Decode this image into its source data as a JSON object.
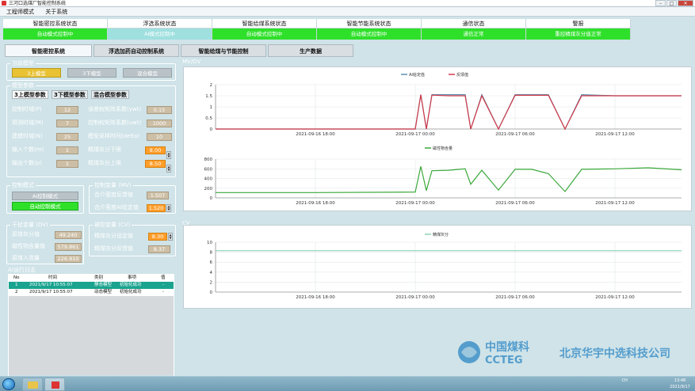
{
  "window": {
    "title": "三河口选煤厂智能控制系统",
    "buttons": {
      "min": "–",
      "max": "□",
      "close": "✕"
    }
  },
  "menu": [
    "工程师模式",
    "关于系统"
  ],
  "status": [
    {
      "head": "智能密控系统状态",
      "val": "自动模式控制中",
      "color": "green"
    },
    {
      "head": "浮选系统状态",
      "val": "AI模式控制中",
      "color": "cyan"
    },
    {
      "head": "智能给煤系统状态",
      "val": "自动模式控制中",
      "color": "green"
    },
    {
      "head": "智能节能系统状态",
      "val": "自动模式控制中",
      "color": "green"
    },
    {
      "head": "通信状态",
      "val": "通信正常",
      "color": "green"
    },
    {
      "head": "警报",
      "val": "重控精煤灰分值正常",
      "color": "green"
    }
  ],
  "tabs": [
    "智能密控系统",
    "浮选加药自动控制系统",
    "智能给煤与节能控制",
    "生产数据"
  ],
  "left": {
    "current_model": {
      "label": "当前模型",
      "buttons": [
        "3上模型",
        "3下模型",
        "混合模型"
      ]
    },
    "model_params": {
      "label": "模型参数",
      "subtabs": [
        "3上模型参数",
        "3下模型参数",
        "混合模型参数"
      ],
      "rows_left": [
        {
          "label": "控制时域(P)",
          "val": "12"
        },
        {
          "label": "预测时域(M)",
          "val": "7"
        },
        {
          "label": "建模时域(N)",
          "val": "25"
        },
        {
          "label": "输入个数(m)",
          "val": "1"
        },
        {
          "label": "输出个数(p)",
          "val": "1"
        }
      ],
      "rows_right": [
        {
          "label": "误差权矩阵系数(ywt)",
          "val": "0.15"
        },
        {
          "label": "控制权矩阵系数(uwt)",
          "val": "1000"
        },
        {
          "label": "模型采样时间(delta)",
          "val": "10"
        },
        {
          "label": "精煤灰分下限",
          "val": "8.00"
        },
        {
          "label": "精煤灰分上限",
          "val": "8.50"
        }
      ],
      "spin_up": "▲",
      "spin_down": "▼"
    },
    "control_mode": {
      "label": "控制模式",
      "btn_ai": "AI控制模式",
      "btn_auto": "自动控制模式"
    },
    "control_var": {
      "label": "控制变量 (MV)",
      "rows": [
        {
          "label": "合介密度反馈值",
          "val": "1.507"
        },
        {
          "label": "合介密度AI给定值",
          "val": "1.520"
        }
      ]
    },
    "disturb_var": {
      "label": "干扰变量 (DV)",
      "rows": [
        {
          "label": "原煤灰分值",
          "val": "49.240"
        },
        {
          "label": "磁性物含量值",
          "val": "579.861"
        },
        {
          "label": "原煤入洗量",
          "val": "226.910"
        }
      ]
    },
    "controlled_var": {
      "label": "被控变量 (CV)",
      "rows": [
        {
          "label": "精煤灰分设定值",
          "val": "8.30"
        },
        {
          "label": "精煤灰分反馈值",
          "val": "8.37"
        }
      ]
    },
    "log": {
      "label": "AI运行日志",
      "headers": [
        "No",
        "时间",
        "类别",
        "事项",
        "值"
      ],
      "rows": [
        [
          "1",
          "2021/9/17 10:55:07",
          "静态模型",
          "初始化成功",
          "-"
        ],
        [
          "2",
          "2021/9/17 10:55:07",
          "动态模型",
          "初始化成功",
          "-"
        ]
      ]
    }
  },
  "charts_text": {
    "mvdv": "MV/DV",
    "cv": "CV",
    "xticks": [
      "2021-09-16 18:00",
      "2021-09-17 00:00",
      "2021-09-17 06:00",
      "2021-09-17 12:00"
    ]
  },
  "logo": {
    "cn": "北京华宇中选科技公司",
    "en": "CCTEG"
  },
  "tray": {
    "time": "13:48",
    "date": "2021/9/17",
    "lang": "CH"
  },
  "chart_data": [
    {
      "type": "line",
      "xlabel": "",
      "ylabel": "",
      "ylim": [
        0,
        2
      ],
      "yticks": [
        0,
        0.5,
        1,
        1.5,
        2
      ],
      "x": [
        "2021-09-16 12:00",
        "2021-09-16 18:00",
        "2021-09-17 00:00",
        "2021-09-17 00:20",
        "2021-09-17 00:40",
        "2021-09-17 01:00",
        "2021-09-17 02:00",
        "2021-09-17 03:00",
        "2021-09-17 03:20",
        "2021-09-17 04:00",
        "2021-09-17 05:00",
        "2021-09-17 06:00",
        "2021-09-17 08:00",
        "2021-09-17 09:00",
        "2021-09-17 10:00",
        "2021-09-17 12:00",
        "2021-09-17 14:00",
        "2021-09-17 16:00"
      ],
      "series": [
        {
          "name": "AI给定值",
          "color": "#5b8fb0",
          "values": [
            0,
            0,
            0,
            1.55,
            0,
            1.55,
            1.55,
            1.55,
            0,
            1.55,
            0,
            1.55,
            1.55,
            0,
            1.55,
            1.5,
            1.5,
            1.5
          ]
        },
        {
          "name": "反馈值",
          "color": "#d33a4a",
          "values": [
            0,
            0,
            0,
            1.55,
            0,
            1.53,
            1.5,
            1.5,
            0,
            1.5,
            0,
            1.52,
            1.52,
            0,
            1.5,
            1.5,
            1.5,
            1.5
          ]
        }
      ]
    },
    {
      "type": "line",
      "xlabel": "",
      "ylabel": "",
      "ylim": [
        0,
        800
      ],
      "yticks": [
        0,
        200,
        400,
        600,
        800
      ],
      "x": [
        "2021-09-16 12:00",
        "2021-09-16 18:00",
        "2021-09-17 00:00",
        "2021-09-17 00:20",
        "2021-09-17 00:40",
        "2021-09-17 01:00",
        "2021-09-17 02:00",
        "2021-09-17 03:00",
        "2021-09-17 03:20",
        "2021-09-17 04:00",
        "2021-09-17 05:00",
        "2021-09-17 06:00",
        "2021-09-17 07:00",
        "2021-09-17 08:00",
        "2021-09-17 09:00",
        "2021-09-17 10:00",
        "2021-09-17 12:00",
        "2021-09-17 14:00",
        "2021-09-17 16:00"
      ],
      "series": [
        {
          "name": "磁性物含量",
          "color": "#3aa83a",
          "values": [
            110,
            110,
            120,
            650,
            150,
            560,
            570,
            600,
            280,
            570,
            160,
            590,
            590,
            500,
            130,
            590,
            600,
            620,
            580
          ]
        }
      ]
    },
    {
      "type": "line",
      "xlabel": "",
      "ylabel": "",
      "ylim": [
        0,
        10
      ],
      "yticks": [
        0,
        2,
        4,
        6,
        8,
        10
      ],
      "x": [
        "2021-09-16 12:00",
        "2021-09-17 16:00"
      ],
      "series": [
        {
          "name": "精煤灰分",
          "color": "#8ad6b2",
          "values": [
            8.3,
            8.3
          ]
        }
      ]
    }
  ]
}
